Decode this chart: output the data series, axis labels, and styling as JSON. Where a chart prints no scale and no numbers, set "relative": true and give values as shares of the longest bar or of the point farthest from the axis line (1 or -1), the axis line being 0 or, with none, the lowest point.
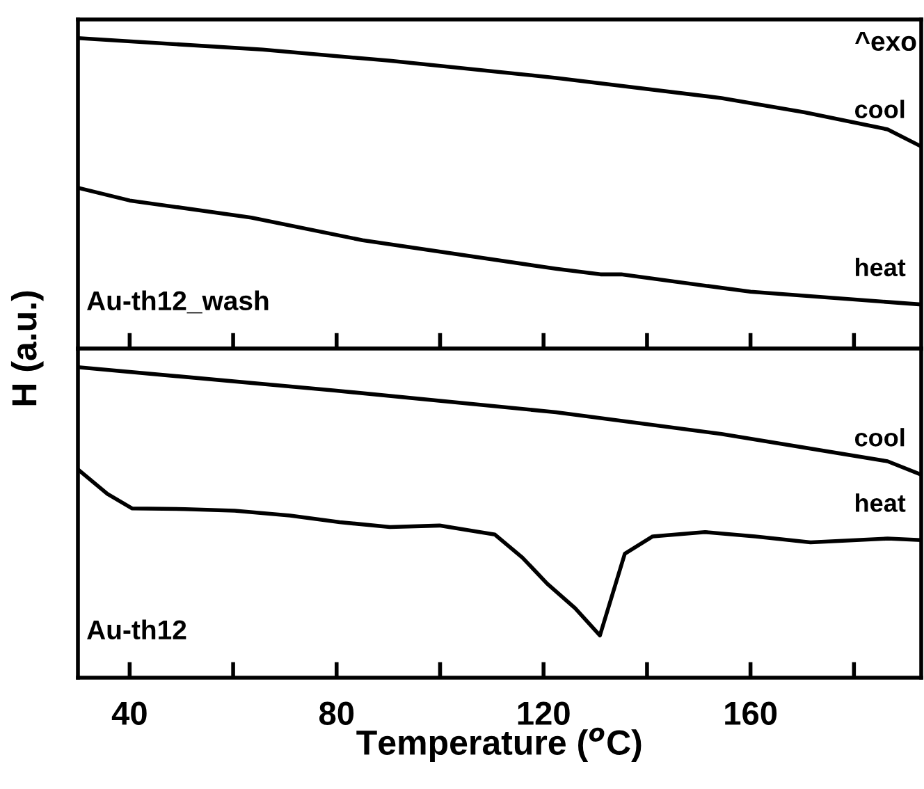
{
  "chart_data": [
    {
      "type": "line",
      "relative": true,
      "ylabel": "H (a.u.)",
      "annotations": [
        "^exo",
        "Au-th12_wash"
      ],
      "xlim": [
        30,
        193
      ],
      "xticks": [
        40,
        60,
        80,
        100,
        120,
        140,
        160,
        180
      ],
      "tick_labels": false,
      "legend": false,
      "grid": false,
      "series": [
        {
          "name": "cool",
          "color": "#000000",
          "x": [
            30,
            65.7,
            90.3,
            122.4,
            154.4,
            170.5,
            186.5,
            193
          ],
          "values": [
            1.0,
            0.963,
            0.927,
            0.872,
            0.807,
            0.761,
            0.706,
            0.651
          ]
        },
        {
          "name": "heat",
          "color": "#000000",
          "x": [
            30,
            40,
            63.5,
            85,
            122.4,
            131,
            135,
            160,
            193
          ],
          "values": [
            0.518,
            0.477,
            0.422,
            0.349,
            0.257,
            0.239,
            0.239,
            0.183,
            0.142
          ]
        }
      ]
    },
    {
      "type": "line",
      "relative": true,
      "xlabel": "Temperature ($^{o}$C)",
      "annotations": [
        "Au-th12"
      ],
      "xlim": [
        30,
        193
      ],
      "xticks": [
        40,
        {
          "value": 60,
          "label": null
        },
        80,
        {
          "value": 100,
          "label": null
        },
        120,
        {
          "value": 140,
          "label": null
        },
        160,
        {
          "value": 180,
          "label": null
        }
      ],
      "tick_labels": "x",
      "legend": false,
      "grid": false,
      "series": [
        {
          "name": "cool",
          "color": "#000000",
          "x": [
            30,
            79.6,
            122.4,
            154.4,
            186.5,
            193
          ],
          "values": [
            1.0,
            0.925,
            0.855,
            0.785,
            0.697,
            0.654
          ]
        },
        {
          "name": "heat",
          "color": "#000000",
          "x": [
            30,
            35.7,
            40.5,
            50.7,
            60.3,
            71.0,
            80.6,
            90.3,
            99.9,
            110.6,
            115.9,
            120.7,
            126.1,
            130.9,
            135.7,
            141.1,
            151.2,
            160.9,
            171.6,
            186.5,
            193
          ],
          "values": [
            0.671,
            0.592,
            0.545,
            0.543,
            0.538,
            0.522,
            0.501,
            0.485,
            0.49,
            0.461,
            0.387,
            0.303,
            0.224,
            0.136,
            0.399,
            0.455,
            0.469,
            0.455,
            0.436,
            0.448,
            0.443
          ]
        }
      ]
    }
  ]
}
